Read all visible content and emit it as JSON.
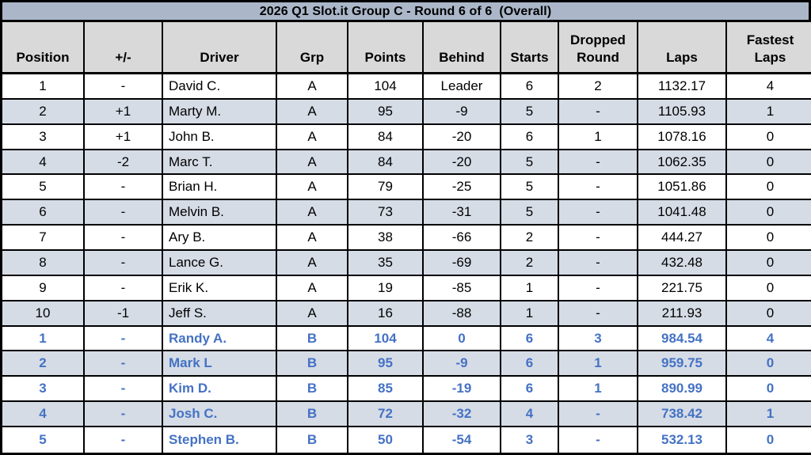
{
  "title": "2026 Q1 Slot.it Group C - Round 6 of 6  (Overall)",
  "colors": {
    "title_bg": "#abb7c9",
    "header_bg": "#d9d9d9",
    "row_bg": "#ffffff",
    "row_shaded_bg": "#d6dce6",
    "border": "#000000",
    "group_a_text": "#000000",
    "group_b_text": "#4472c4"
  },
  "columns": [
    {
      "key": "position",
      "label": "Position"
    },
    {
      "key": "change",
      "label": "+/-"
    },
    {
      "key": "driver",
      "label": "Driver"
    },
    {
      "key": "grp",
      "label": "Grp"
    },
    {
      "key": "points",
      "label": "Points"
    },
    {
      "key": "behind",
      "label": "Behind"
    },
    {
      "key": "starts",
      "label": "Starts"
    },
    {
      "key": "dropped",
      "label": "Dropped\nRound"
    },
    {
      "key": "laps",
      "label": "Laps"
    },
    {
      "key": "fastest",
      "label": "Fastest\nLaps"
    }
  ],
  "chart_data": {
    "type": "table",
    "title": "2026 Q1 Slot.it Group C - Round 6 of 6  (Overall)",
    "columns": [
      "Position",
      "+/-",
      "Driver",
      "Grp",
      "Points",
      "Behind",
      "Starts",
      "Dropped Round",
      "Laps",
      "Fastest Laps"
    ]
  },
  "rows": [
    {
      "position": "1",
      "change": "-",
      "driver": "David C.",
      "grp": "A",
      "points": "104",
      "behind": "Leader",
      "starts": "6",
      "dropped": "2",
      "laps": "1132.17",
      "fastest": "4"
    },
    {
      "position": "2",
      "change": "+1",
      "driver": "Marty M.",
      "grp": "A",
      "points": "95",
      "behind": "-9",
      "starts": "5",
      "dropped": "-",
      "laps": "1105.93",
      "fastest": "1"
    },
    {
      "position": "3",
      "change": "+1",
      "driver": "John B.",
      "grp": "A",
      "points": "84",
      "behind": "-20",
      "starts": "6",
      "dropped": "1",
      "laps": "1078.16",
      "fastest": "0"
    },
    {
      "position": "4",
      "change": "-2",
      "driver": "Marc T.",
      "grp": "A",
      "points": "84",
      "behind": "-20",
      "starts": "5",
      "dropped": "-",
      "laps": "1062.35",
      "fastest": "0"
    },
    {
      "position": "5",
      "change": "-",
      "driver": "Brian H.",
      "grp": "A",
      "points": "79",
      "behind": "-25",
      "starts": "5",
      "dropped": "-",
      "laps": "1051.86",
      "fastest": "0"
    },
    {
      "position": "6",
      "change": "-",
      "driver": "Melvin B.",
      "grp": "A",
      "points": "73",
      "behind": "-31",
      "starts": "5",
      "dropped": "-",
      "laps": "1041.48",
      "fastest": "0"
    },
    {
      "position": "7",
      "change": "-",
      "driver": "Ary B.",
      "grp": "A",
      "points": "38",
      "behind": "-66",
      "starts": "2",
      "dropped": "-",
      "laps": "444.27",
      "fastest": "0"
    },
    {
      "position": "8",
      "change": "-",
      "driver": "Lance G.",
      "grp": "A",
      "points": "35",
      "behind": "-69",
      "starts": "2",
      "dropped": "-",
      "laps": "432.48",
      "fastest": "0"
    },
    {
      "position": "9",
      "change": "-",
      "driver": "Erik K.",
      "grp": "A",
      "points": "19",
      "behind": "-85",
      "starts": "1",
      "dropped": "-",
      "laps": "221.75",
      "fastest": "0"
    },
    {
      "position": "10",
      "change": "-1",
      "driver": "Jeff S.",
      "grp": "A",
      "points": "16",
      "behind": "-88",
      "starts": "1",
      "dropped": "-",
      "laps": "211.93",
      "fastest": "0"
    },
    {
      "position": "1",
      "change": "-",
      "driver": "Randy A.",
      "grp": "B",
      "points": "104",
      "behind": "0",
      "starts": "6",
      "dropped": "3",
      "laps": "984.54",
      "fastest": "4"
    },
    {
      "position": "2",
      "change": "-",
      "driver": "Mark L",
      "grp": "B",
      "points": "95",
      "behind": "-9",
      "starts": "6",
      "dropped": "1",
      "laps": "959.75",
      "fastest": "0"
    },
    {
      "position": "3",
      "change": "-",
      "driver": "Kim D.",
      "grp": "B",
      "points": "85",
      "behind": "-19",
      "starts": "6",
      "dropped": "1",
      "laps": "890.99",
      "fastest": "0"
    },
    {
      "position": "4",
      "change": "-",
      "driver": "Josh C.",
      "grp": "B",
      "points": "72",
      "behind": "-32",
      "starts": "4",
      "dropped": "-",
      "laps": "738.42",
      "fastest": "1"
    },
    {
      "position": "5",
      "change": "-",
      "driver": "Stephen B.",
      "grp": "B",
      "points": "50",
      "behind": "-54",
      "starts": "3",
      "dropped": "-",
      "laps": "532.13",
      "fastest": "0"
    }
  ]
}
